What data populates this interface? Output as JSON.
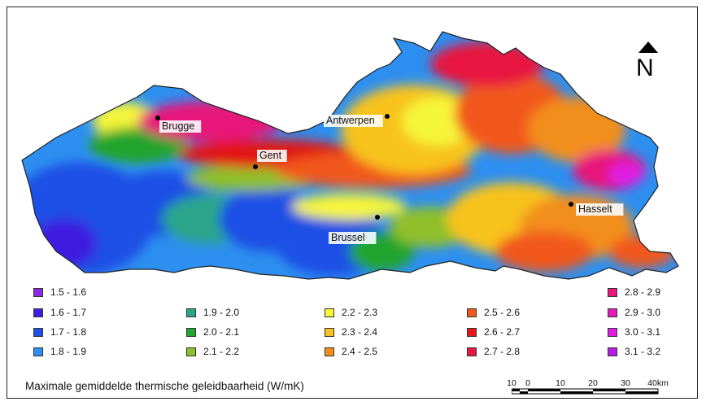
{
  "map": {
    "title": "Maximale gemiddelde thermische geleidbaarheid (W/mK)",
    "north_label": "N",
    "cities": [
      {
        "name": "Brugge"
      },
      {
        "name": "Antwerpen"
      },
      {
        "name": "Gent"
      },
      {
        "name": "Hasselt"
      },
      {
        "name": "Brussel"
      }
    ]
  },
  "legend": {
    "items": [
      {
        "label": "1.5 - 1.6",
        "color": "#8a2be2"
      },
      {
        "label": "1.6 - 1.7",
        "color": "#3d1fe0"
      },
      {
        "label": "1.7 - 1.8",
        "color": "#1e4fe6"
      },
      {
        "label": "1.8 - 1.9",
        "color": "#2d8ff0"
      },
      {
        "label": "1.9 - 2.0",
        "color": "#2aa68a"
      },
      {
        "label": "2.0 - 2.1",
        "color": "#22a52e"
      },
      {
        "label": "2.1 - 2.2",
        "color": "#8fbf2a"
      },
      {
        "label": "2.2 - 2.3",
        "color": "#f5f53a"
      },
      {
        "label": "2.3 - 2.4",
        "color": "#f7c21e"
      },
      {
        "label": "2.4 - 2.5",
        "color": "#f28e1c"
      },
      {
        "label": "2.5 - 2.6",
        "color": "#f2581e"
      },
      {
        "label": "2.6 - 2.7",
        "color": "#e21818"
      },
      {
        "label": "2.7 - 2.8",
        "color": "#e8173f"
      },
      {
        "label": "2.8 - 2.9",
        "color": "#e8177a"
      },
      {
        "label": "2.9 - 3.0",
        "color": "#e81ab8"
      },
      {
        "label": "3.0 - 3.1",
        "color": "#e01ce6"
      },
      {
        "label": "3.1 - 3.2",
        "color": "#b41ce6"
      }
    ]
  },
  "scalebar": {
    "labels": [
      "10",
      "0",
      "10",
      "20",
      "30",
      "40km"
    ]
  }
}
